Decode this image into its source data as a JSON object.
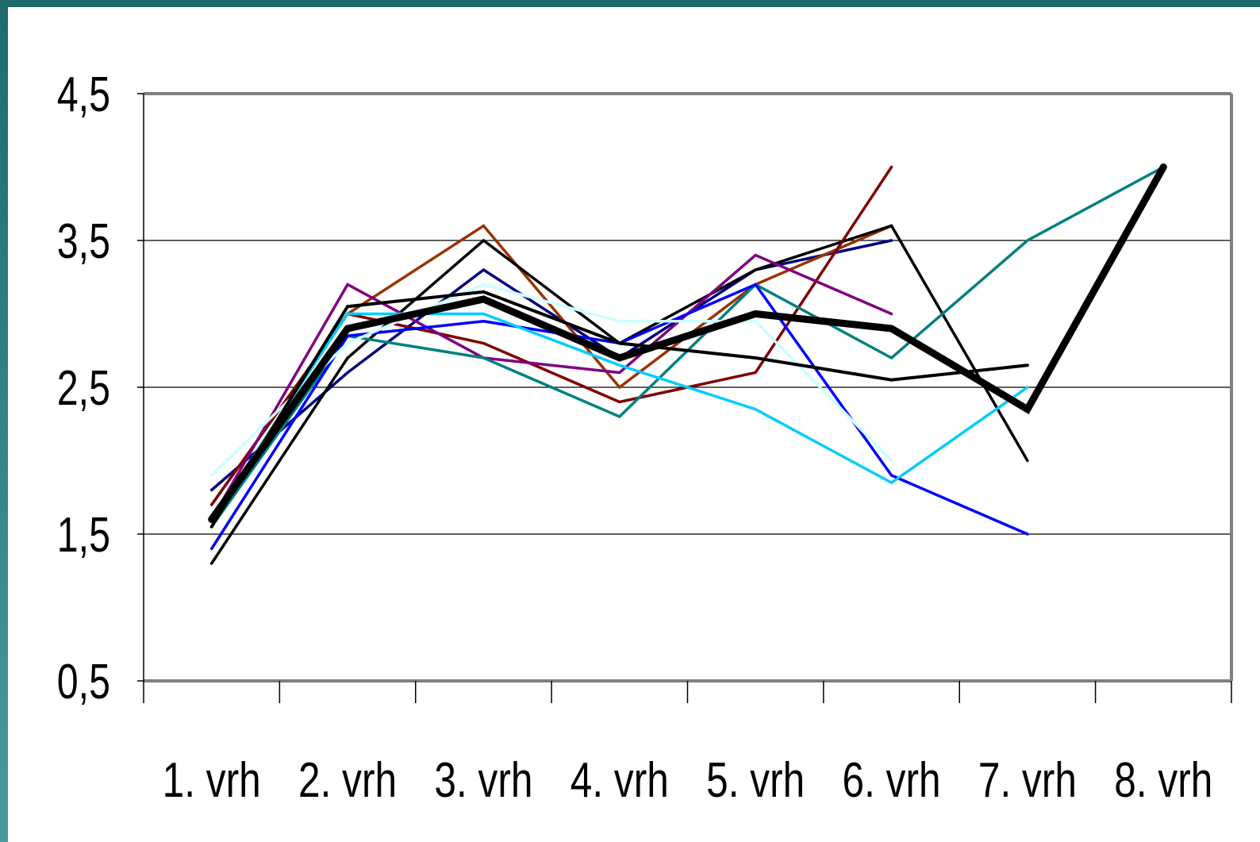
{
  "chart_data": {
    "type": "line",
    "categories": [
      "1. vrh",
      "2. vrh",
      "3. vrh",
      "4. vrh",
      "5. vrh",
      "6. vrh",
      "7. vrh",
      "8. vrh"
    ],
    "y_ticks": [
      "0,5",
      "1,5",
      "2,5",
      "3,5",
      "4,5"
    ],
    "ylim": [
      0.5,
      4.5
    ],
    "grid": true,
    "legend": "none",
    "series": [
      {
        "color": "#000080",
        "width": 3.5,
        "values": [
          1.8,
          2.6,
          3.3,
          2.7,
          3.3,
          3.5,
          null,
          null
        ]
      },
      {
        "color": "#993300",
        "width": 3.5,
        "values": [
          1.7,
          3.0,
          3.6,
          2.5,
          3.2,
          3.6,
          null,
          null
        ]
      },
      {
        "color": "#000000",
        "width": 3.5,
        "values": [
          1.3,
          2.7,
          3.5,
          2.8,
          3.3,
          3.6,
          2.0,
          null
        ]
      },
      {
        "color": "#800000",
        "width": 3.5,
        "values": [
          1.7,
          3.0,
          2.8,
          2.4,
          2.6,
          4.0,
          null,
          null
        ]
      },
      {
        "color": "#800080",
        "width": 3.5,
        "values": [
          1.6,
          3.2,
          2.7,
          2.6,
          3.4,
          3.0,
          null,
          null
        ]
      },
      {
        "color": "#008080",
        "width": 3.5,
        "values": [
          1.55,
          2.85,
          2.7,
          2.3,
          3.2,
          2.7,
          3.5,
          4.0
        ]
      },
      {
        "color": "#0000ff",
        "width": 3.5,
        "values": [
          1.4,
          2.85,
          2.95,
          2.8,
          3.2,
          1.9,
          1.5,
          null
        ]
      },
      {
        "color": "#ccffff",
        "width": 3.5,
        "values": [
          1.9,
          2.8,
          3.2,
          2.95,
          2.95,
          2.0,
          null,
          null
        ]
      },
      {
        "color": "#00ccff",
        "width": 3.5,
        "values": [
          1.6,
          3.0,
          3.0,
          2.65,
          2.35,
          1.85,
          2.5,
          null
        ]
      },
      {
        "color": "#000000",
        "width": 4,
        "values": [
          1.55,
          3.05,
          3.15,
          2.8,
          2.7,
          2.55,
          2.65,
          null
        ]
      },
      {
        "color": "#000000",
        "width": 9,
        "values": [
          1.6,
          2.9,
          3.1,
          2.7,
          3.0,
          2.9,
          2.35,
          4.0
        ]
      }
    ]
  }
}
